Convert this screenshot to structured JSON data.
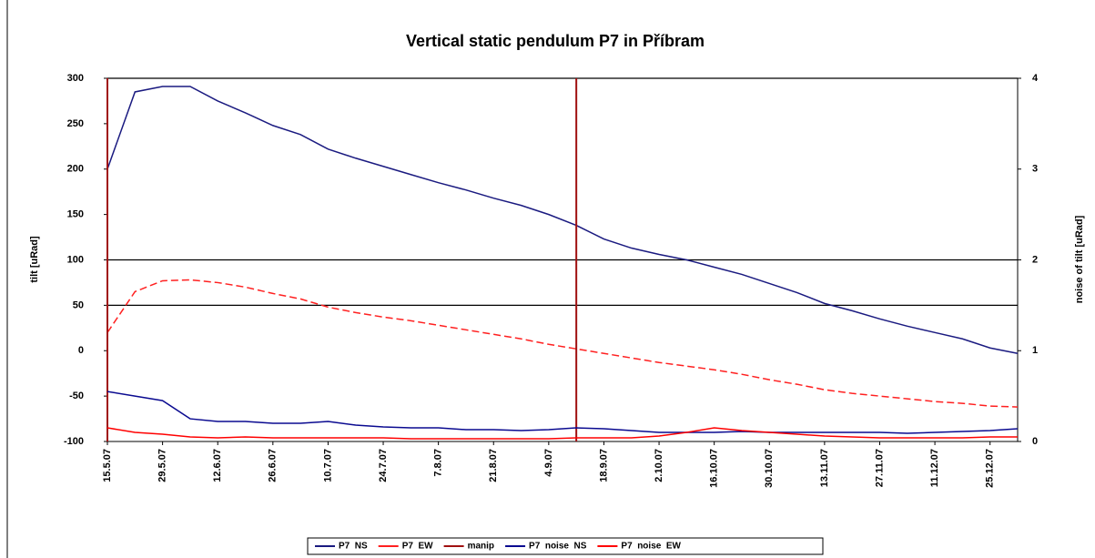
{
  "chart_data": {
    "type": "line",
    "title": "Vertical static pendulum P7 in Příbram",
    "y_label": "tilt [uRad]",
    "y2_label": "noise of tilt [uRad]",
    "categories": [
      "15.5.07",
      null,
      "29.5.07",
      null,
      "12.6.07",
      null,
      "26.6.07",
      null,
      "10.7.07",
      null,
      "24.7.07",
      null,
      "7.8.07",
      null,
      "21.8.07",
      null,
      "4.9.07",
      null,
      "18.9.07",
      null,
      "2.10.07",
      null,
      "16.10.07",
      null,
      "30.10.07",
      null,
      "13.11.07",
      null,
      "27.11.07",
      null,
      "11.12.07",
      null,
      "25.12.07",
      null
    ],
    "ylim": [
      -100,
      300
    ],
    "yticks": [
      -100,
      -50,
      0,
      50,
      100,
      150,
      200,
      250,
      300
    ],
    "y2lim": [
      0,
      4
    ],
    "y2ticks": [
      0,
      1,
      2,
      3,
      4
    ],
    "gridlines": [
      300,
      100,
      50
    ],
    "legend": "bottom",
    "series": [
      {
        "name": "P7  NS",
        "color": "#1a1a80",
        "values": [
          200,
          285,
          291,
          291,
          275,
          262,
          248,
          238,
          222,
          212,
          203,
          194,
          185,
          177,
          168,
          160,
          150,
          138,
          123,
          113,
          106,
          100,
          92,
          84,
          74,
          64,
          52,
          44,
          35,
          27,
          20,
          13,
          3,
          -3
        ]
      },
      {
        "name": "P7  EW",
        "color": "#ff2020",
        "dashed": true,
        "values": [
          20,
          65,
          77,
          78,
          75,
          70,
          63,
          57,
          48,
          42,
          37,
          33,
          28,
          23,
          18,
          13,
          7,
          2,
          -3,
          -8,
          -13,
          -17,
          -21,
          -26,
          -32,
          -37,
          -43,
          -47,
          -50,
          -53,
          -56,
          -58,
          -61,
          -62
        ]
      },
      {
        "name": "manip",
        "color": "#a01010",
        "type": "bar",
        "values": [
          300,
          null,
          null,
          null,
          null,
          null,
          null,
          null,
          null,
          null,
          null,
          null,
          null,
          null,
          null,
          null,
          null,
          300,
          null,
          null,
          null,
          null,
          null,
          null,
          null,
          null,
          null,
          null,
          null,
          null,
          null,
          null,
          null,
          null
        ]
      },
      {
        "name": "P7  noise  NS",
        "color": "#0a0a90",
        "axis": "y2",
        "values": [
          0.55,
          0.5,
          0.45,
          0.25,
          0.22,
          0.22,
          0.2,
          0.2,
          0.22,
          0.18,
          0.16,
          0.15,
          0.15,
          0.13,
          0.13,
          0.12,
          0.13,
          0.15,
          0.14,
          0.12,
          0.1,
          0.1,
          0.1,
          0.11,
          0.1,
          0.1,
          0.1,
          0.1,
          0.1,
          0.09,
          0.1,
          0.11,
          0.12,
          0.14
        ]
      },
      {
        "name": "P7  noise  EW",
        "color": "#ff0000",
        "axis": "y2",
        "values": [
          0.15,
          0.1,
          0.08,
          0.05,
          0.04,
          0.05,
          0.04,
          0.04,
          0.04,
          0.04,
          0.04,
          0.03,
          0.03,
          0.03,
          0.03,
          0.03,
          0.03,
          0.04,
          0.04,
          0.04,
          0.06,
          0.1,
          0.15,
          0.12,
          0.1,
          0.08,
          0.06,
          0.05,
          0.04,
          0.04,
          0.04,
          0.04,
          0.05,
          0.05
        ]
      }
    ]
  }
}
